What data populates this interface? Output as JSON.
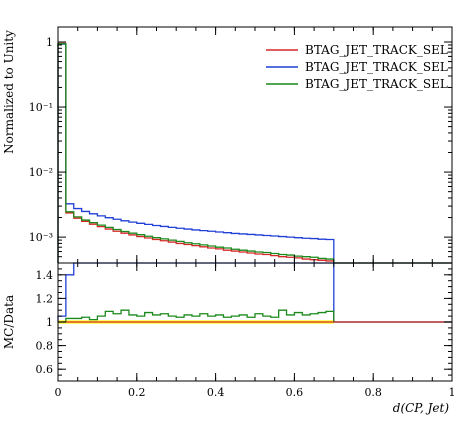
{
  "chart_data": [
    {
      "type": "line",
      "panel": "main",
      "ylabel": "Normalized to Unity",
      "yscale": "log",
      "xlim": [
        0,
        1
      ],
      "ylim": [
        0.0004,
        1.7
      ],
      "ytick_labels": [
        "1",
        "10⁻¹",
        "10⁻²",
        "10⁻³"
      ],
      "ytick_values": [
        1,
        0.1,
        0.01,
        0.001
      ],
      "legend_placement": "top-right",
      "bin_edges": [
        0.0,
        0.02,
        0.04,
        0.06,
        0.08,
        0.1,
        0.12,
        0.14,
        0.16,
        0.18,
        0.2,
        0.22,
        0.24,
        0.26,
        0.28,
        0.3,
        0.32,
        0.34,
        0.36,
        0.38,
        0.4,
        0.42,
        0.44,
        0.46,
        0.48,
        0.5,
        0.52,
        0.54,
        0.56,
        0.58,
        0.6,
        0.62,
        0.64,
        0.66,
        0.68,
        0.7,
        1.0
      ],
      "series": [
        {
          "name": "BTAG_JET_TRACK_SEL",
          "color": "#d62728",
          "values": [
            0.95,
            0.00235,
            0.00195,
            0.00175,
            0.00158,
            0.00145,
            0.00133,
            0.00123,
            0.00115,
            0.00108,
            0.00102,
            0.00097,
            0.00092,
            0.00088,
            0.00084,
            0.0008,
            0.00077,
            0.00074,
            0.00071,
            0.00068,
            0.00066,
            0.00063,
            0.00061,
            0.00059,
            0.00057,
            0.00055,
            0.00054,
            0.00052,
            0.0005,
            0.00049,
            0.00048,
            0.00046,
            0.00045,
            0.00044,
            0.00043,
            0.0
          ]
        },
        {
          "name": "BTAG_JET_TRACK_SEL",
          "color": "#1f3fd6",
          "values": [
            0.93,
            0.00325,
            0.00275,
            0.00248,
            0.00228,
            0.00212,
            0.00199,
            0.00188,
            0.00178,
            0.0017,
            0.00163,
            0.00157,
            0.00151,
            0.00146,
            0.00141,
            0.00137,
            0.00133,
            0.00129,
            0.00126,
            0.00123,
            0.0012,
            0.00117,
            0.00114,
            0.00112,
            0.0011,
            0.00108,
            0.00106,
            0.00104,
            0.00102,
            0.001,
            0.00098,
            0.00096,
            0.00095,
            0.00093,
            0.00092,
            0.0
          ]
        },
        {
          "name": "BTAG_JET_TRACK_SEL",
          "color": "#1a8a1a",
          "values": [
            0.94,
            0.00245,
            0.00205,
            0.00183,
            0.00167,
            0.00153,
            0.00141,
            0.00131,
            0.00122,
            0.00115,
            0.00109,
            0.00103,
            0.00098,
            0.00094,
            0.0009,
            0.00086,
            0.00082,
            0.00079,
            0.00076,
            0.00073,
            0.0007,
            0.00068,
            0.00065,
            0.00063,
            0.00061,
            0.00059,
            0.00058,
            0.00056,
            0.00054,
            0.00053,
            0.00051,
            0.0005,
            0.00049,
            0.00047,
            0.00046,
            0.0
          ]
        }
      ]
    },
    {
      "type": "line",
      "panel": "ratio",
      "ylabel": "MC/Data",
      "xlabel": "d(CP, Jet)",
      "xlim": [
        0,
        1
      ],
      "ylim": [
        0.5,
        1.5
      ],
      "xtick_labels": [
        "0",
        "0.2",
        "0.4",
        "0.6",
        "0.8",
        "1"
      ],
      "xtick_values": [
        0,
        0.2,
        0.4,
        0.6,
        0.8,
        1.0
      ],
      "ytick_labels": [
        "0.6",
        "0.8",
        "1",
        "1.2",
        "1.4"
      ],
      "ytick_values": [
        0.6,
        0.8,
        1.0,
        1.2,
        1.4
      ],
      "band": {
        "color": "#ffff33",
        "lower": 0.985,
        "upper": 1.015,
        "xmax": 0.7
      },
      "series": [
        {
          "color": "#1f3fd6",
          "values": [
            1.05,
            1.4,
            1.55,
            1.55,
            1.55,
            1.55,
            1.55,
            1.55,
            1.55,
            1.55,
            1.55,
            1.55,
            1.55,
            1.55,
            1.55,
            1.55,
            1.55,
            1.55,
            1.55,
            1.55,
            1.55,
            1.55,
            1.55,
            1.55,
            1.55,
            1.55,
            1.55,
            1.55,
            1.55,
            1.55,
            1.55,
            1.55,
            1.55,
            1.55,
            1.55,
            1.0
          ]
        },
        {
          "color": "#1a8a1a",
          "values": [
            1.0,
            1.03,
            1.03,
            1.04,
            1.02,
            1.05,
            1.09,
            1.07,
            1.1,
            1.06,
            1.05,
            1.08,
            1.06,
            1.07,
            1.05,
            1.04,
            1.06,
            1.05,
            1.07,
            1.05,
            1.06,
            1.04,
            1.05,
            1.06,
            1.04,
            1.07,
            1.05,
            1.04,
            1.1,
            1.06,
            1.08,
            1.06,
            1.07,
            1.08,
            1.09,
            1.0
          ]
        },
        {
          "color": "#d62728",
          "values": [
            1.0,
            1.0,
            1.0,
            1.0,
            1.0,
            1.0,
            1.0,
            1.0,
            1.0,
            1.0,
            1.0,
            1.0,
            1.0,
            1.0,
            1.0,
            1.0,
            1.0,
            1.0,
            1.0,
            1.0,
            1.0,
            1.0,
            1.0,
            1.0,
            1.0,
            1.0,
            1.0,
            1.0,
            1.0,
            1.0,
            1.0,
            1.0,
            1.0,
            1.0,
            1.0,
            1.0
          ]
        }
      ]
    }
  ]
}
